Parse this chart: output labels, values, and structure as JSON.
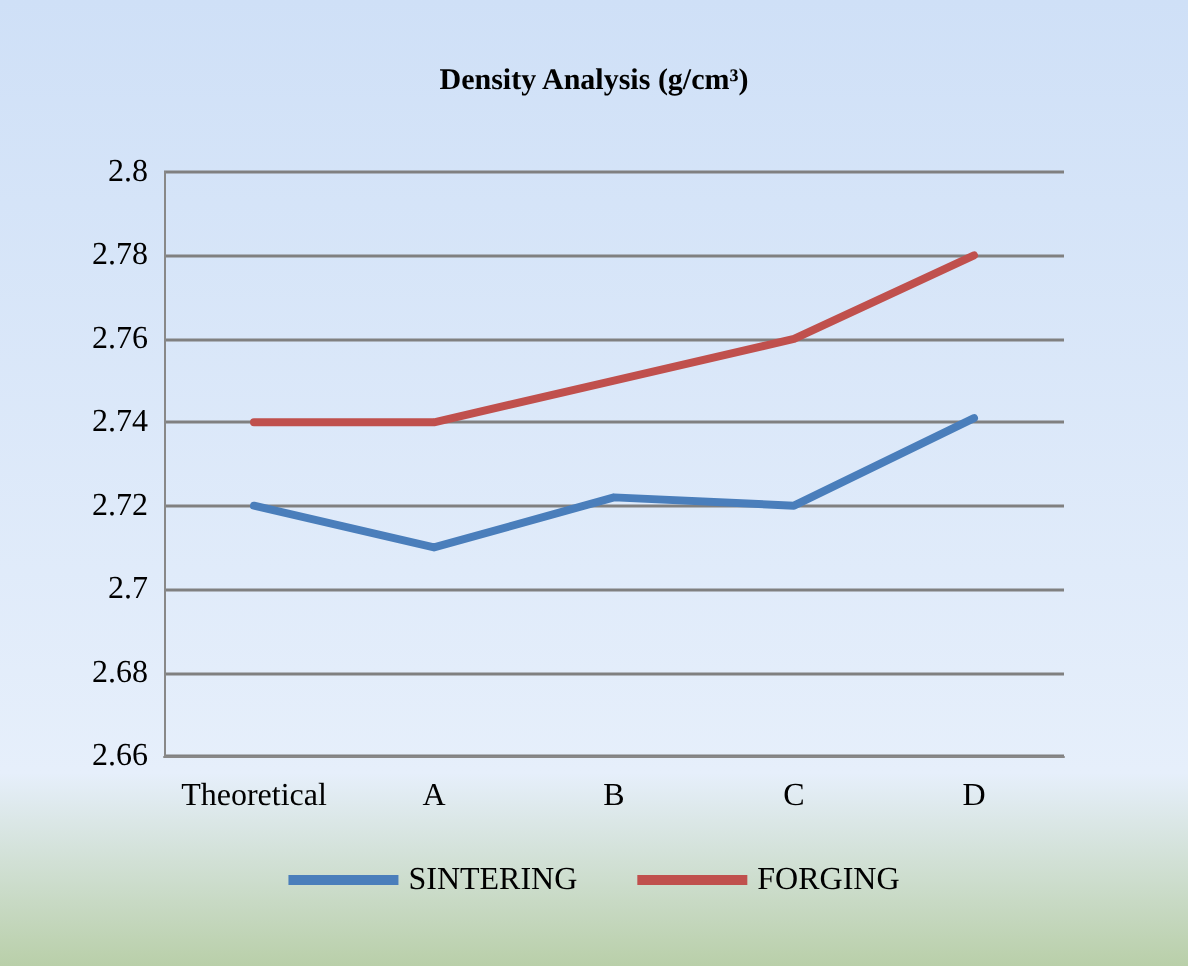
{
  "chart_data": {
    "type": "line",
    "title": "Density Analysis (g/cm³)",
    "categories": [
      "Theoretical",
      "A",
      "B",
      "C",
      "D"
    ],
    "series": [
      {
        "name": "SINTERING",
        "color": "#4a7ebb",
        "values": [
          2.72,
          2.71,
          2.722,
          2.72,
          2.741
        ]
      },
      {
        "name": "FORGING",
        "color": "#c0504d",
        "values": [
          2.74,
          2.74,
          2.75,
          2.76,
          2.78
        ]
      }
    ],
    "ylim": [
      2.66,
      2.8
    ],
    "yticks": [
      2.66,
      2.68,
      2.7,
      2.72,
      2.74,
      2.76,
      2.78,
      2.8
    ],
    "grid": "y",
    "legend": "bottom",
    "marker": "none",
    "line_style": "solid"
  }
}
